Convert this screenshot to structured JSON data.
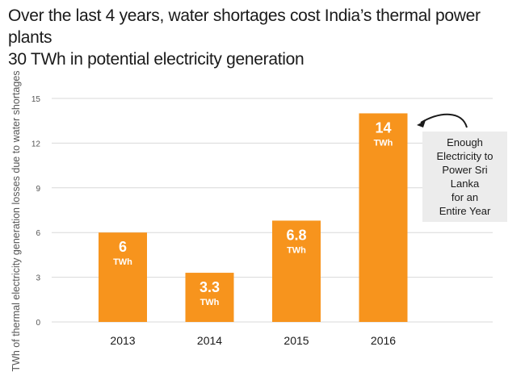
{
  "title_lines": [
    "Over the last 4 years, water shortages cost India’s thermal power plants",
    "30 TWh in potential electricity generation"
  ],
  "annotation": {
    "text": "Enough\nElectricity to\nPower Sri Lanka\nfor an\nEntire Year",
    "points_to": "2016"
  },
  "colors": {
    "bar": "#f7941d",
    "grid": "#d9d9d9",
    "text": "#1a1a1a",
    "axis_text": "#555555",
    "bar_label": "#ffffff",
    "annotation_bg": "#ececec"
  },
  "chart_data": {
    "type": "bar",
    "title": "Over the last 4 years, water shortages cost India’s thermal power plants 30 TWh in potential electricity generation",
    "ylabel": "TWh of thermal electricity generation losses due to water shortages",
    "xlabel": "",
    "categories": [
      "2013",
      "2014",
      "2015",
      "2016"
    ],
    "values": [
      6,
      3.3,
      6.8,
      14
    ],
    "data_labels": [
      "6",
      "3.3",
      "6.8",
      "14"
    ],
    "data_label_unit": "TWh",
    "ylim": [
      0,
      15
    ],
    "yticks": [
      0,
      3,
      6,
      9,
      12,
      15
    ],
    "grid": true,
    "legend": "none"
  }
}
